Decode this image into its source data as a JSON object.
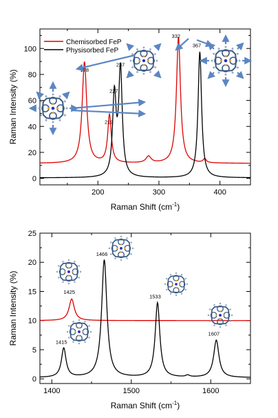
{
  "chart_data": [
    {
      "type": "line",
      "xlabel": "Raman Shift (cm",
      "xlabel_sup": "-1",
      "xlabel_end": ")",
      "ylabel": "Raman Intensity (%)",
      "xlim": [
        105,
        450
      ],
      "ylim": [
        -5,
        115
      ],
      "xticks": [
        200,
        300,
        400
      ],
      "yticks": [
        0,
        20,
        40,
        60,
        80,
        100
      ],
      "legend_position": "top-left",
      "series": [
        {
          "name": "Chemisorbed FeP",
          "color": "#dd0000",
          "baseline": 11.5,
          "peaks": [
            {
              "x": 178,
              "y": 78,
              "w": 4.5
            },
            {
              "x": 219,
              "y": 37,
              "w": 3.5
            },
            {
              "x": 283,
              "y": 5,
              "w": 5
            },
            {
              "x": 332,
              "y": 97,
              "w": 4
            },
            {
              "x": 375,
              "y": 3,
              "w": 3
            }
          ]
        },
        {
          "name": "Physisorbed FeP",
          "color": "#000000",
          "baseline": 0.4,
          "peaks": [
            {
              "x": 227,
              "y": 62,
              "w": 3.5
            },
            {
              "x": 237,
              "y": 82,
              "w": 3.5
            },
            {
              "x": 367,
              "y": 97,
              "w": 3.5
            }
          ]
        }
      ],
      "peak_labels": [
        {
          "text": "178",
          "x": 178,
          "y": 82
        },
        {
          "text": "219",
          "x": 218,
          "y": 42
        },
        {
          "text": "227",
          "x": 226,
          "y": 66
        },
        {
          "text": "237",
          "x": 237,
          "y": 86
        },
        {
          "text": "332",
          "x": 328,
          "y": 108
        },
        {
          "text": "367",
          "x": 362,
          "y": 101
        }
      ]
    },
    {
      "type": "line",
      "xlabel": "Raman Shift (cm",
      "xlabel_sup": "-1",
      "xlabel_end": ")",
      "ylabel": "Raman Intensity (%)",
      "xlim": [
        1385,
        1650
      ],
      "ylim": [
        -0.8,
        25
      ],
      "xticks": [
        1400,
        1500,
        1600
      ],
      "yticks": [
        0,
        5,
        10,
        15,
        20,
        25
      ],
      "series": [
        {
          "name": "Chemisorbed FeP",
          "color": "#dd0000",
          "baseline": 10.0,
          "peaks": [
            {
              "x": 1425,
              "y": 3.7,
              "w": 4
            }
          ]
        },
        {
          "name": "Physisorbed FeP",
          "color": "#000000",
          "baseline": 0.2,
          "peaks": [
            {
              "x": 1415,
              "y": 5.0,
              "w": 3.5
            },
            {
              "x": 1466,
              "y": 20.2,
              "w": 4
            },
            {
              "x": 1533,
              "y": 12.8,
              "w": 3.5
            },
            {
              "x": 1571,
              "y": 0.3,
              "w": 3
            },
            {
              "x": 1607,
              "y": 6.4,
              "w": 4
            }
          ]
        }
      ],
      "peak_labels": [
        {
          "text": "1415",
          "x": 1412,
          "y": 6.0
        },
        {
          "text": "1425",
          "x": 1422,
          "y": 14.6
        },
        {
          "text": "1466",
          "x": 1463,
          "y": 21.1
        },
        {
          "text": "1533",
          "x": 1530,
          "y": 13.8
        },
        {
          "text": "1607",
          "x": 1604,
          "y": 7.4
        }
      ]
    }
  ],
  "colors": {
    "chemisorbed": "#dd0000",
    "physisorbed": "#000000",
    "arrow": "#5b86c2",
    "molecule_ring": "#3a5b86",
    "molecule_n": "#e8a33a",
    "molecule_fe": "#2233cc"
  },
  "icons": [
    "fep-molecule-icon",
    "displacement-arrow-icon"
  ]
}
